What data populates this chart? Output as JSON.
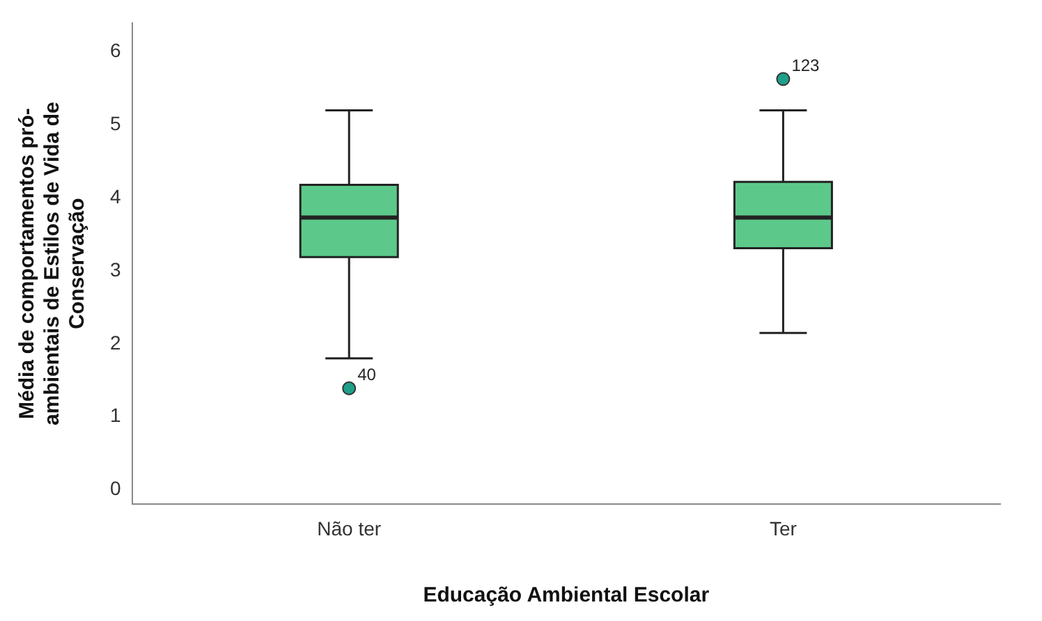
{
  "chart_data": {
    "type": "box",
    "xlabel": "Educação Ambiental Escolar",
    "ylabel": "Média de comportamentos pró-ambientais de Estilos de Vida de Conservação",
    "categories": [
      "Não ter",
      "Ter"
    ],
    "boxes": [
      {
        "low": 1.8,
        "q1": 3.19,
        "median": 3.73,
        "q3": 4.18,
        "high": 5.2
      },
      {
        "low": 2.15,
        "q1": 3.31,
        "median": 3.73,
        "q3": 4.22,
        "high": 5.2
      }
    ],
    "color": "#5cc98a",
    "series": [
      {
        "type": "scatter",
        "color": "#1f9e89",
        "x": [
          "Não ter",
          "Ter"
        ],
        "values": [
          1.39,
          5.63
        ]
      }
    ],
    "ylim": [
      -0.2,
      6.4
    ],
    "yticks": [
      0,
      1,
      2,
      3,
      4,
      5,
      6
    ],
    "grid": false,
    "legend": false,
    "annotations": [
      "40",
      "123"
    ]
  }
}
